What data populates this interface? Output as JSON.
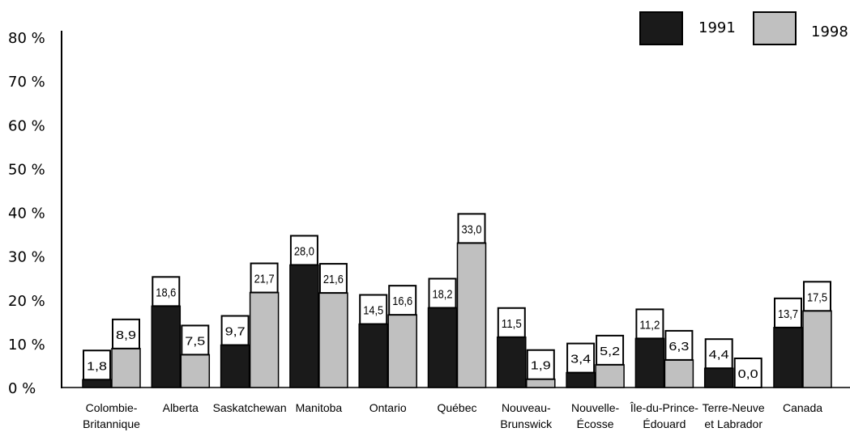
{
  "chart_data": {
    "type": "bar",
    "categories": [
      [
        "Colombie-",
        "Britannique"
      ],
      [
        "Alberta"
      ],
      [
        "Saskatchewan"
      ],
      [
        "Manitoba"
      ],
      [
        "Ontario"
      ],
      [
        "Québec"
      ],
      [
        "Nouveau-",
        "Brunswick"
      ],
      [
        "Nouvelle-",
        "Écosse"
      ],
      [
        "Île-du-Prince-",
        "Édouard"
      ],
      [
        "Terre-Neuve",
        "et Labrador"
      ],
      [
        "Canada"
      ]
    ],
    "series": [
      {
        "name": "1991",
        "color": "#1a1a1a",
        "values": [
          1.8,
          18.6,
          9.7,
          28.0,
          14.5,
          18.2,
          11.5,
          3.4,
          11.2,
          4.4,
          13.7
        ],
        "labels": [
          "1,8",
          "18,6",
          "9,7",
          "28,0",
          "14,5",
          "18,2",
          "11,5",
          "3,4",
          "11,2",
          "4,4",
          "13,7"
        ]
      },
      {
        "name": "1998",
        "color": "#c0c0c0",
        "values": [
          8.9,
          7.5,
          21.7,
          21.6,
          16.6,
          33.0,
          1.9,
          5.2,
          6.3,
          0.0,
          17.5
        ],
        "labels": [
          "8,9",
          "7,5",
          "21,7",
          "21,6",
          "16,6",
          "33,0",
          "1,9",
          "5,2",
          "6,3",
          "0,0",
          "17,5"
        ]
      }
    ],
    "ylim": [
      0,
      80
    ],
    "yticks": [
      "0 %",
      "10 %",
      "20 %",
      "30 %",
      "40 %",
      "50 %",
      "60 %",
      "70 %",
      "80 %"
    ],
    "legend_position": "top-right",
    "grid": false
  }
}
